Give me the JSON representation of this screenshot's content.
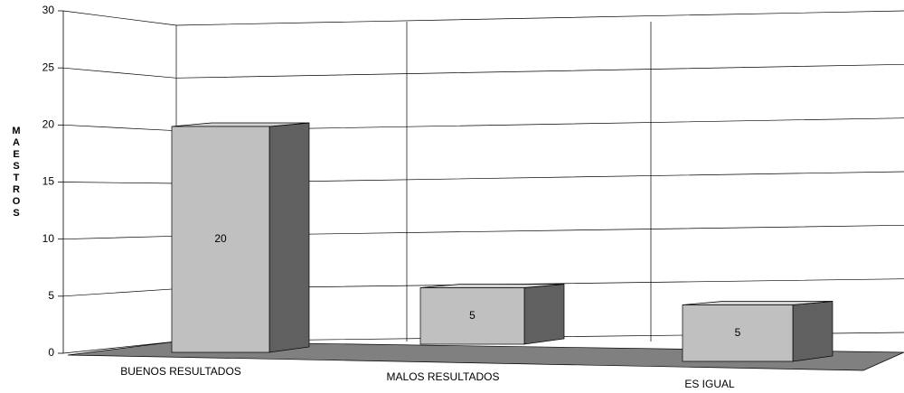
{
  "chart_data": {
    "type": "bar",
    "y_label": "MAESTROS",
    "categories": [
      "BUENOS RESULTADOS",
      "MALOS RESULTADOS",
      "ES IGUAL"
    ],
    "values": [
      20,
      5,
      5
    ],
    "ylim": [
      0,
      30
    ],
    "yticks": [
      0,
      5,
      10,
      15,
      20,
      25,
      30
    ],
    "grid": true,
    "color": "#c0c0c0"
  }
}
